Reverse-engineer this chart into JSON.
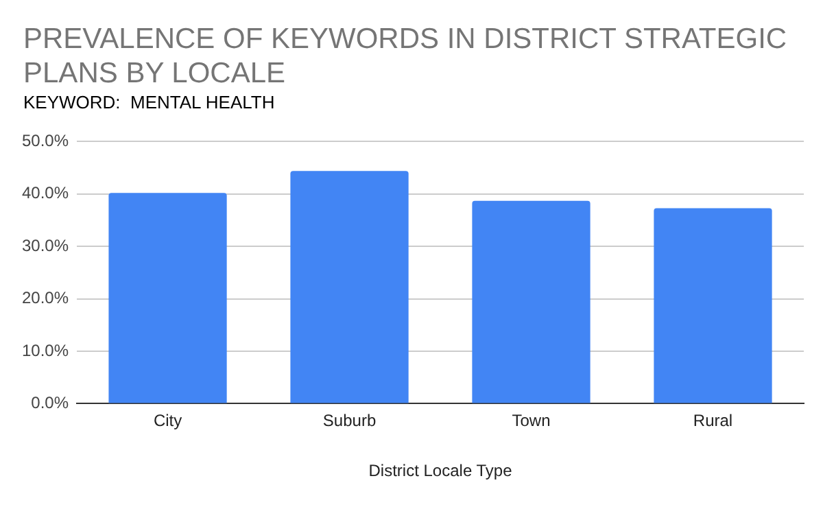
{
  "chart_data": {
    "type": "bar",
    "title": "PREVALENCE OF KEYWORDS IN DISTRICT STRATEGIC PLANS BY LOCALE",
    "subtitle": "KEYWORD:  MENTAL HEALTH",
    "xlabel": "District Locale Type",
    "categories": [
      "City",
      "Suburb",
      "Town",
      "Rural"
    ],
    "values": [
      40.2,
      44.4,
      38.7,
      37.3
    ],
    "color": "#4285f4",
    "ylim": [
      0,
      50
    ],
    "yticks": [
      {
        "value": 0,
        "label": "0.0%"
      },
      {
        "value": 10,
        "label": "10.0%"
      },
      {
        "value": 20,
        "label": "20.0%"
      },
      {
        "value": 30,
        "label": "30.0%"
      },
      {
        "value": 40,
        "label": "40.0%"
      },
      {
        "value": 50,
        "label": "50.0%"
      }
    ],
    "grid": "y",
    "legend": false
  }
}
